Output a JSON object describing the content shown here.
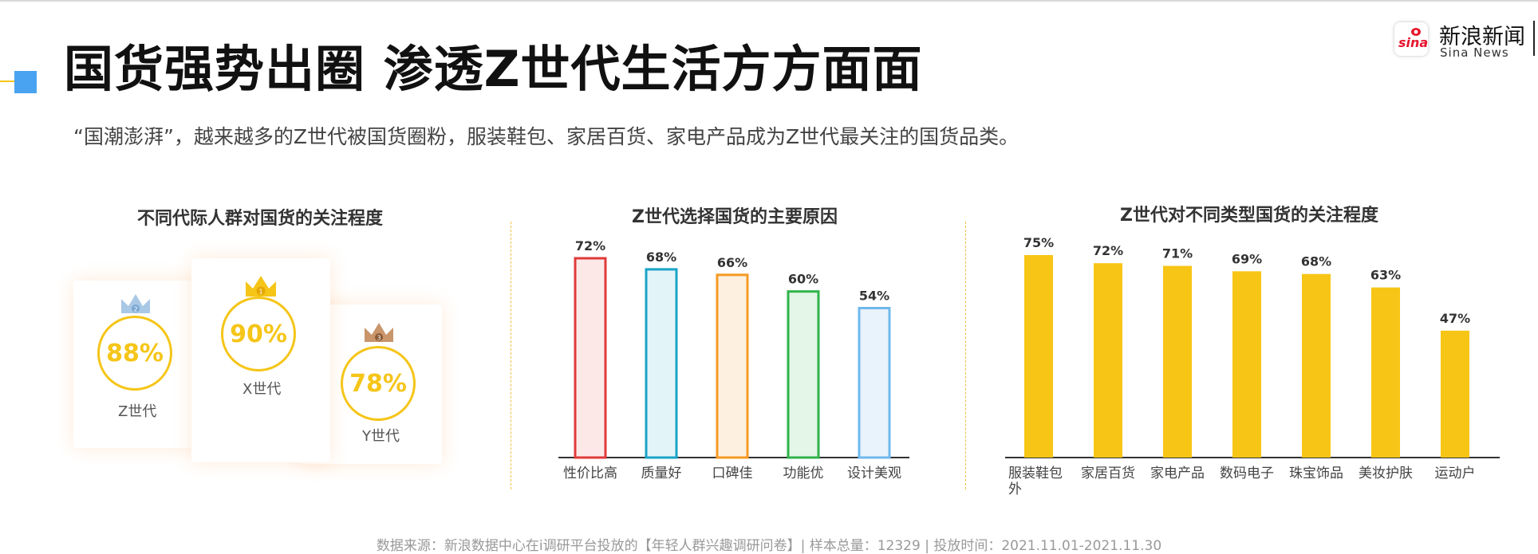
{
  "header": {
    "title": "国货强势出圈 渗透Z世代生活方方面面",
    "subtitle": "“国潮澎湃”，越来越多的Z世代被国货圈粉，服装鞋包、家居百货、家电产品成为Z世代最关注的国货品类。"
  },
  "logo": {
    "badge_text": "sina",
    "name_cn": "新浪新闻",
    "name_en": "Sina News"
  },
  "footer": {
    "text": "数据来源：新浪数据中心在i调研平台投放的【年轻人群兴趣调研问卷】| 样本总量：12329 | 投放时间：2021.11.01-2021.11.30"
  },
  "colors": {
    "accent_yellow": "#f5c518",
    "accent_blue": "#4aa3f0",
    "orange_glow": "#fa963c"
  },
  "chart_data": [
    {
      "type": "ranking",
      "title": "不同代际人群对国货的关注程度",
      "items": [
        {
          "label": "Z世代",
          "value": 88,
          "display": "88%",
          "rank": 2,
          "crown_color": "#a9c8e6",
          "crown_icon": "silver-crown-icon"
        },
        {
          "label": "X世代",
          "value": 90,
          "display": "90%",
          "rank": 1,
          "crown_color": "#f5c518",
          "crown_icon": "gold-crown-icon"
        },
        {
          "label": "Y世代",
          "value": 78,
          "display": "78%",
          "rank": 3,
          "crown_color": "#c9956a",
          "crown_icon": "bronze-crown-icon"
        }
      ]
    },
    {
      "type": "bar",
      "title": "Z世代选择国货的主要原因",
      "categories": [
        "性价比高",
        "质量好",
        "口碑佳",
        "功能优",
        "设计美观"
      ],
      "values": [
        72,
        68,
        66,
        60,
        54
      ],
      "data_labels": [
        "72%",
        "68%",
        "66%",
        "60%",
        "54%"
      ],
      "ylim": [
        0,
        80
      ],
      "stroke_colors": [
        "#e03a3a",
        "#1aa3c8",
        "#f59a23",
        "#2fb34a",
        "#6fb8ec"
      ],
      "fill_colors": [
        "#fde8e8",
        "#e3f4f8",
        "#fdf0e0",
        "#e3f6e7",
        "#e8f3fc"
      ]
    },
    {
      "type": "bar",
      "title": "Z世代对不同类型国货的关注程度",
      "categories": [
        "服装鞋包外",
        "家居百货",
        "家电产品",
        "数码电子",
        "珠宝饰品",
        "美妆护肤",
        "运动户"
      ],
      "values": [
        75,
        72,
        71,
        69,
        68,
        63,
        47
      ],
      "data_labels": [
        "75%",
        "72%",
        "71%",
        "69%",
        "68%",
        "63%",
        "47%"
      ],
      "ylim": [
        0,
        80
      ],
      "bar_color": "#f7c515"
    }
  ]
}
